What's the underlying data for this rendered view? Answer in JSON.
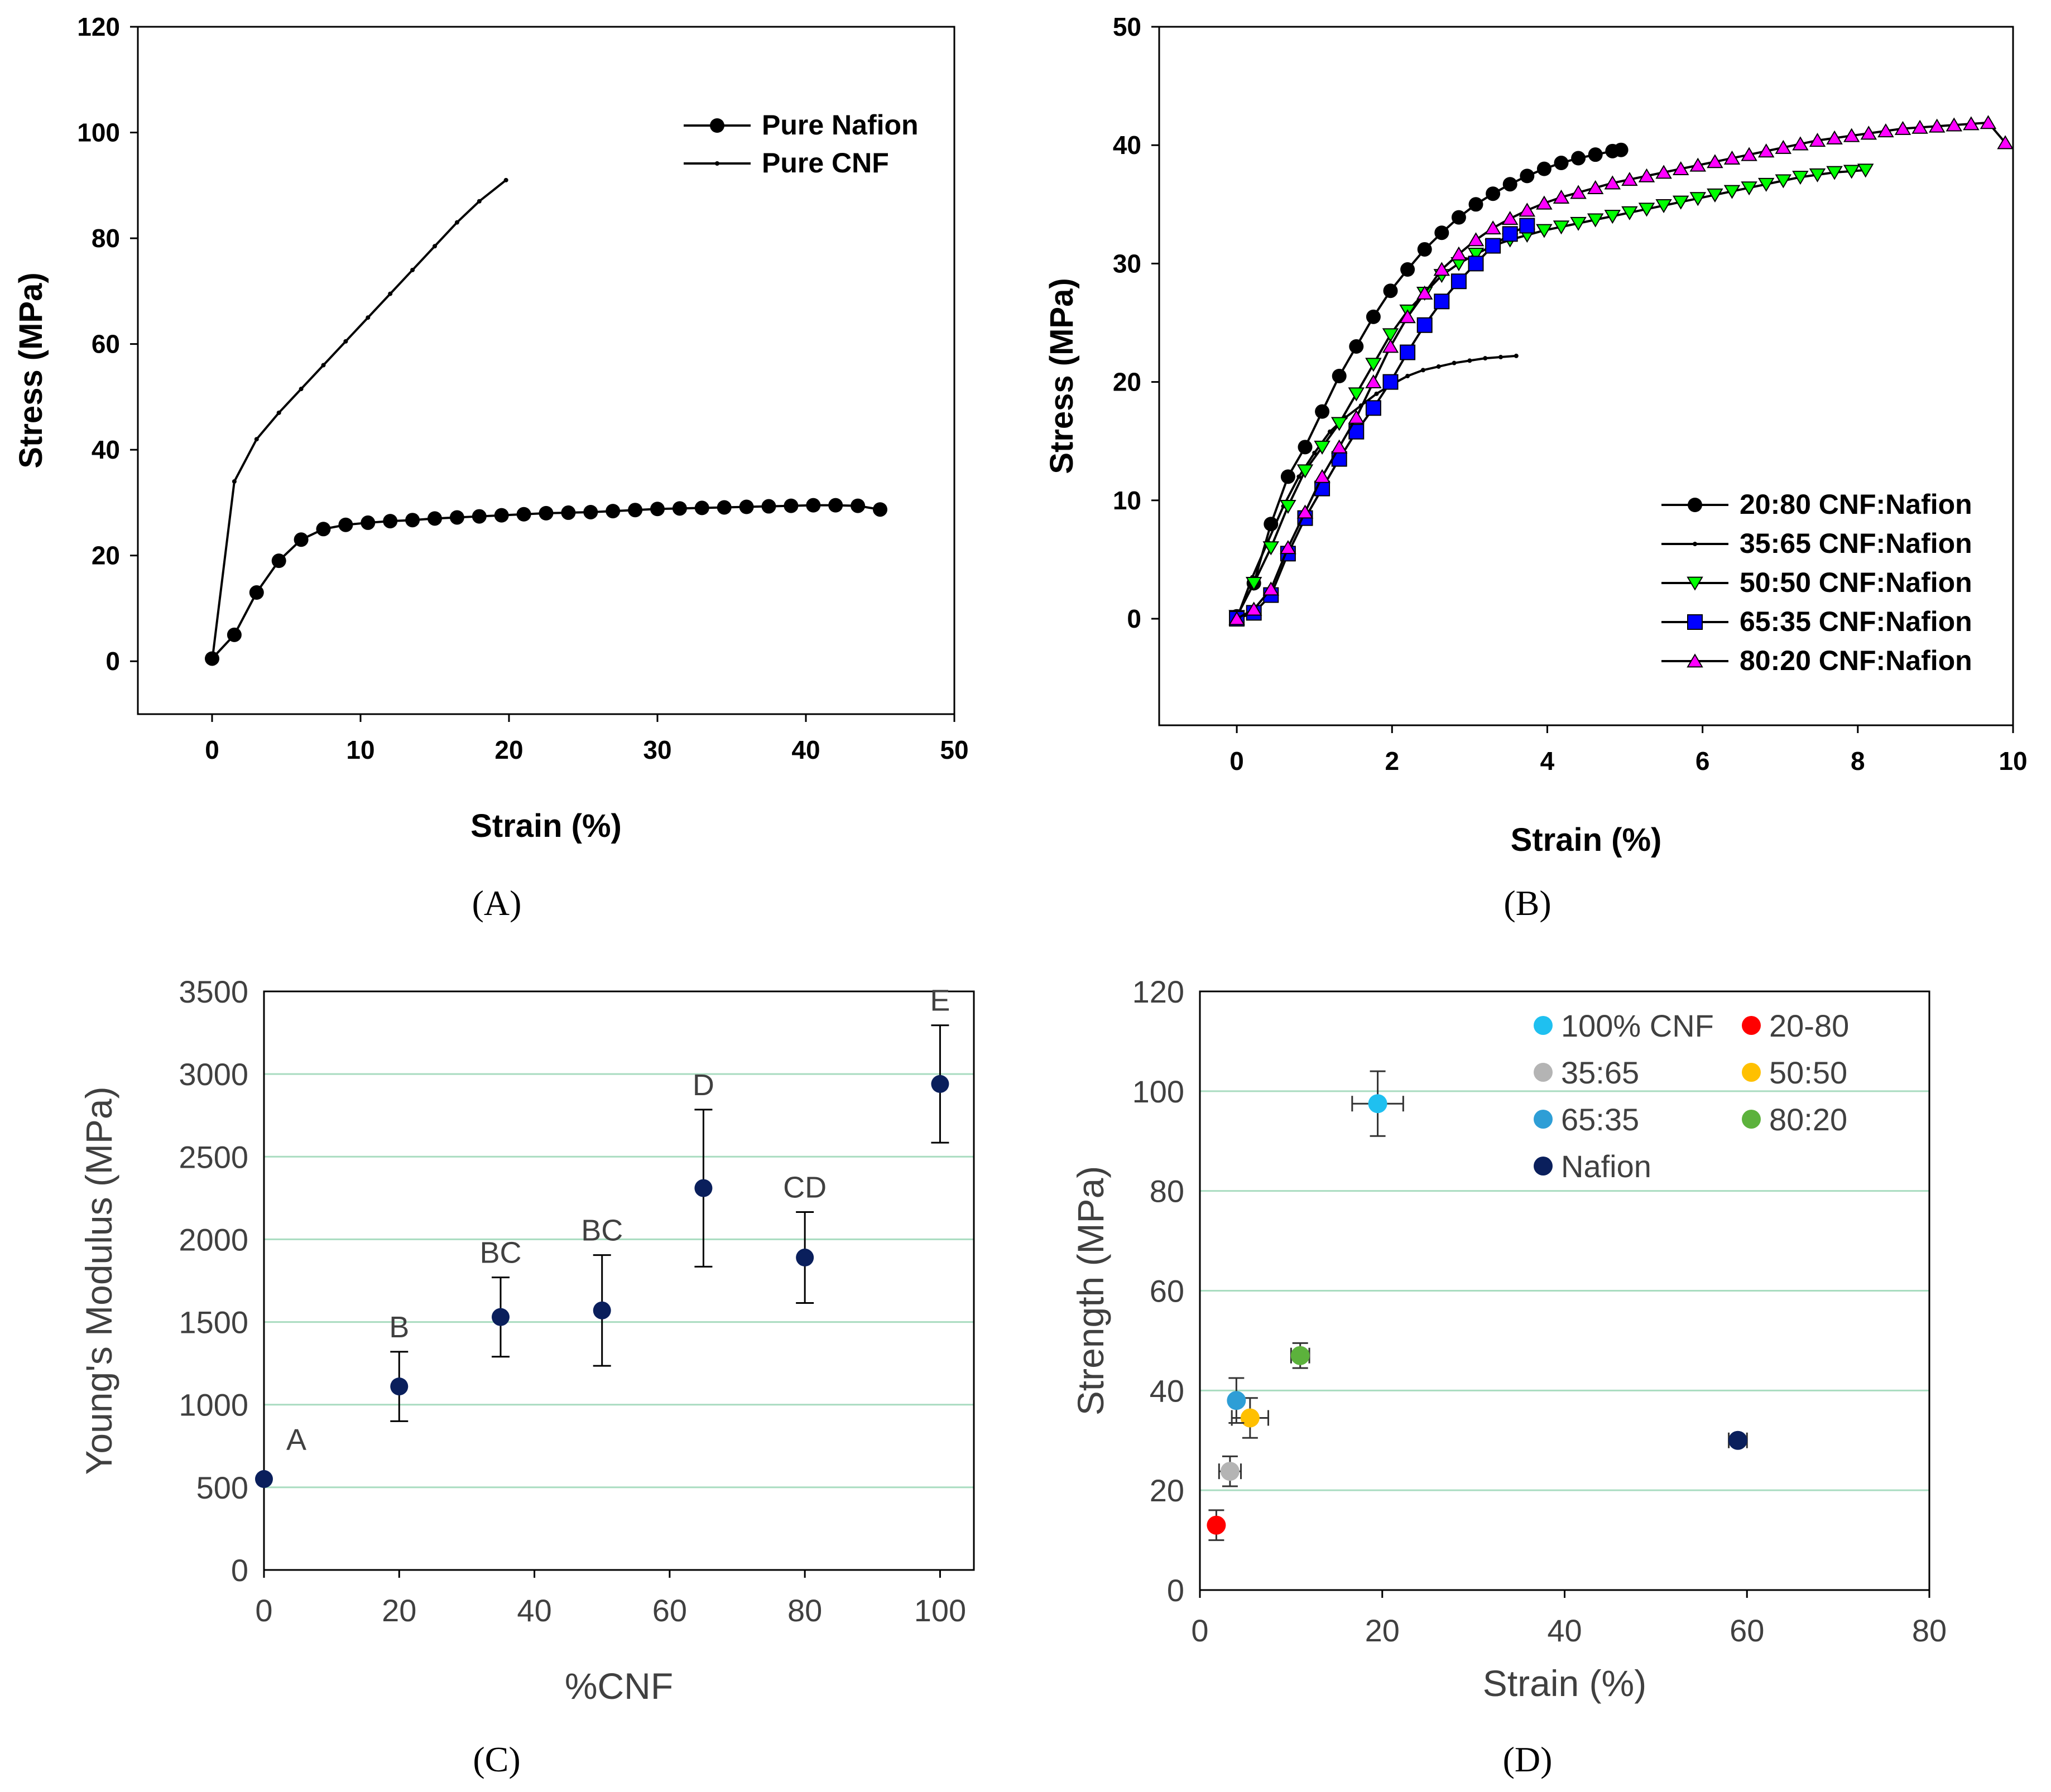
{
  "chart_data": [
    {
      "panel": "A",
      "type": "line",
      "caption": "(A)",
      "xlabel": "Strain (%)",
      "ylabel": "Stress (MPa)",
      "xlim": [
        -5,
        50
      ],
      "ylim": [
        -10,
        120
      ],
      "xticks": [
        0,
        10,
        20,
        30,
        40,
        50
      ],
      "yticks": [
        0,
        20,
        40,
        60,
        80,
        100,
        120
      ],
      "legend": [
        "Pure Nafion",
        "Pure CNF"
      ],
      "series": [
        {
          "name": "Pure Nafion",
          "marker": "circle",
          "x": [
            0,
            1.5,
            3,
            4.5,
            6,
            7.5,
            9,
            10.5,
            12,
            13.5,
            15,
            16.5,
            18,
            19.5,
            21,
            22.5,
            24,
            25.5,
            27,
            28.5,
            30,
            31.5,
            33,
            34.5,
            36,
            37.5,
            39,
            40.5,
            42,
            43.5,
            45
          ],
          "y": [
            0.5,
            5,
            13,
            19,
            23,
            25,
            25.8,
            26.2,
            26.5,
            26.7,
            27,
            27.2,
            27.4,
            27.6,
            27.8,
            28,
            28.1,
            28.2,
            28.4,
            28.6,
            28.8,
            28.9,
            29,
            29.1,
            29.2,
            29.3,
            29.4,
            29.5,
            29.5,
            29.4,
            28.7
          ]
        },
        {
          "name": "Pure CNF",
          "marker": "dot",
          "x": [
            0,
            1.5,
            3,
            4.5,
            6,
            7.5,
            9,
            10.5,
            12,
            13.5,
            15,
            16.5,
            18,
            19.8
          ],
          "y": [
            0,
            34,
            42,
            47,
            51.5,
            56,
            60.5,
            65,
            69.5,
            74,
            78.5,
            83,
            87,
            91
          ]
        }
      ]
    },
    {
      "panel": "B",
      "type": "line",
      "caption": "(B)",
      "xlabel": "Strain (%)",
      "ylabel": "Stress (MPa)",
      "xlim": [
        -1,
        10
      ],
      "ylim": [
        -9,
        50
      ],
      "xticks": [
        0,
        2,
        4,
        6,
        8,
        10
      ],
      "yticks": [
        0,
        10,
        20,
        30,
        40,
        50
      ],
      "legend": [
        "20:80 CNF:Nafion",
        "35:65 CNF:Nafion",
        "50:50 CNF:Nafion",
        "65:35 CNF:Nafion",
        "80:20 CNF:Nafion"
      ],
      "series": [
        {
          "name": "20:80 CNF:Nafion",
          "marker": "circle",
          "color": "#000000",
          "x": [
            0,
            0.22,
            0.44,
            0.66,
            0.88,
            1.1,
            1.32,
            1.54,
            1.76,
            1.98,
            2.2,
            2.42,
            2.64,
            2.86,
            3.08,
            3.3,
            3.52,
            3.74,
            3.96,
            4.18,
            4.4,
            4.62,
            4.84,
            4.95
          ],
          "y": [
            0.2,
            3,
            8,
            12,
            14.5,
            17.5,
            20.5,
            23,
            25.5,
            27.7,
            29.5,
            31.2,
            32.6,
            33.9,
            35,
            35.9,
            36.7,
            37.4,
            38,
            38.5,
            38.9,
            39.2,
            39.5,
            39.6
          ]
        },
        {
          "name": "35:65 CNF:Nafion",
          "marker": "dot",
          "color": "#000000",
          "x": [
            0,
            0.2,
            0.4,
            0.6,
            0.8,
            1.0,
            1.2,
            1.4,
            1.6,
            1.8,
            2.0,
            2.2,
            2.4,
            2.6,
            2.8,
            3.0,
            3.2,
            3.4,
            3.6
          ],
          "y": [
            0,
            3.5,
            6.5,
            9.5,
            12,
            14,
            15.8,
            17,
            18,
            19,
            19.8,
            20.5,
            21,
            21.3,
            21.6,
            21.8,
            22,
            22.1,
            22.2
          ]
        },
        {
          "name": "50:50 CNF:Nafion",
          "marker": "triangle-down",
          "color": "#00ff00",
          "x": [
            0,
            0.22,
            0.44,
            0.66,
            0.88,
            1.1,
            1.32,
            1.54,
            1.76,
            1.98,
            2.2,
            2.42,
            2.64,
            2.86,
            3.08,
            3.3,
            3.52,
            3.74,
            3.96,
            4.18,
            4.4,
            4.62,
            4.84,
            5.06,
            5.28,
            5.5,
            5.72,
            5.94,
            6.16,
            6.38,
            6.6,
            6.82,
            7.04,
            7.26,
            7.48,
            7.7,
            7.92,
            8.1
          ],
          "y": [
            0.2,
            3,
            6,
            9.5,
            12.5,
            14.5,
            16.5,
            19,
            21.5,
            24,
            26,
            27.5,
            29,
            30,
            30.8,
            31.5,
            32,
            32.4,
            32.8,
            33.1,
            33.4,
            33.7,
            34,
            34.3,
            34.6,
            34.9,
            35.2,
            35.5,
            35.8,
            36.1,
            36.4,
            36.7,
            37,
            37.3,
            37.5,
            37.7,
            37.8,
            37.9
          ]
        },
        {
          "name": "65:35 CNF:Nafion",
          "marker": "square",
          "color": "#0000ff",
          "x": [
            0,
            0.22,
            0.44,
            0.66,
            0.88,
            1.1,
            1.32,
            1.54,
            1.76,
            1.98,
            2.2,
            2.42,
            2.64,
            2.86,
            3.08,
            3.3,
            3.52,
            3.74
          ],
          "y": [
            0,
            0.5,
            2,
            5.5,
            8.5,
            11,
            13.5,
            15.8,
            17.8,
            20,
            22.5,
            24.8,
            26.8,
            28.5,
            30,
            31.5,
            32.5,
            33.2
          ]
        },
        {
          "name": "80:20 CNF:Nafion",
          "marker": "triangle-up",
          "color": "#ff00ff",
          "x": [
            0,
            0.22,
            0.44,
            0.66,
            0.88,
            1.1,
            1.32,
            1.54,
            1.76,
            1.98,
            2.2,
            2.42,
            2.64,
            2.86,
            3.08,
            3.3,
            3.52,
            3.74,
            3.96,
            4.18,
            4.4,
            4.62,
            4.84,
            5.06,
            5.28,
            5.5,
            5.72,
            5.94,
            6.16,
            6.38,
            6.6,
            6.82,
            7.04,
            7.26,
            7.48,
            7.7,
            7.92,
            8.14,
            8.36,
            8.58,
            8.8,
            9.02,
            9.24,
            9.46,
            9.68,
            9.9
          ],
          "y": [
            0,
            0.8,
            2.5,
            6,
            9,
            12,
            14.5,
            17,
            20,
            23,
            25.5,
            27.5,
            29.5,
            30.8,
            32,
            33,
            33.8,
            34.5,
            35.1,
            35.6,
            36,
            36.4,
            36.8,
            37.1,
            37.4,
            37.7,
            38,
            38.3,
            38.6,
            38.9,
            39.2,
            39.5,
            39.8,
            40.1,
            40.4,
            40.6,
            40.8,
            41,
            41.2,
            41.4,
            41.5,
            41.6,
            41.7,
            41.8,
            41.9,
            40.2
          ]
        }
      ]
    },
    {
      "panel": "C",
      "type": "scatter",
      "caption": "(C)",
      "xlabel": "%CNF",
      "ylabel": "Young's Modulus (MPa)",
      "xlim": [
        0,
        105
      ],
      "ylim": [
        0,
        3500
      ],
      "xticks": [
        0,
        20,
        40,
        60,
        80,
        100
      ],
      "yticks": [
        0,
        500,
        1000,
        1500,
        2000,
        2500,
        3000,
        3500
      ],
      "grid": true,
      "points": [
        {
          "x": 0,
          "y": 550,
          "err": 0,
          "label": "A"
        },
        {
          "x": 20,
          "y": 1110,
          "err": 210,
          "label": "B"
        },
        {
          "x": 35,
          "y": 1530,
          "err": 240,
          "label": "BC"
        },
        {
          "x": 50,
          "y": 1570,
          "err": 335,
          "label": "BC"
        },
        {
          "x": 65,
          "y": 2310,
          "err": 475,
          "label": "D"
        },
        {
          "x": 80,
          "y": 1890,
          "err": 275,
          "label": "CD"
        },
        {
          "x": 100,
          "y": 2940,
          "err": 355,
          "label": "E"
        }
      ]
    },
    {
      "panel": "D",
      "type": "scatter",
      "caption": "(D)",
      "xlabel": "Strain (%)",
      "ylabel": "Strength (MPa)",
      "xlim": [
        0,
        80
      ],
      "ylim": [
        0,
        120
      ],
      "xticks": [
        0,
        20,
        40,
        60,
        80
      ],
      "yticks": [
        0,
        20,
        40,
        60,
        80,
        100,
        120
      ],
      "grid": true,
      "points": [
        {
          "name": "100% CNF",
          "color": "#1fc0f0",
          "x": 19.5,
          "y": 97.5,
          "xerr": 2.8,
          "yerr": 6.5
        },
        {
          "name": "20-80",
          "color": "#ff0000",
          "x": 1.8,
          "y": 13,
          "xerr": 0,
          "yerr": 3
        },
        {
          "name": "35:65",
          "color": "#b4b4b4",
          "x": 3.3,
          "y": 23.8,
          "xerr": 1.2,
          "yerr": 3
        },
        {
          "name": "50:50",
          "color": "#ffc000",
          "x": 5.5,
          "y": 34.5,
          "xerr": 2,
          "yerr": 4
        },
        {
          "name": "65:35",
          "color": "#2e9ed6",
          "x": 4,
          "y": 38,
          "xerr": 0,
          "yerr": 4.5
        },
        {
          "name": "80:20",
          "color": "#5cb23c",
          "x": 11,
          "y": 47,
          "xerr": 1,
          "yerr": 2.5
        },
        {
          "name": "Nafion",
          "color": "#0a1f5c",
          "x": 59,
          "y": 30,
          "xerr": 1,
          "yerr": 0
        }
      ]
    }
  ]
}
